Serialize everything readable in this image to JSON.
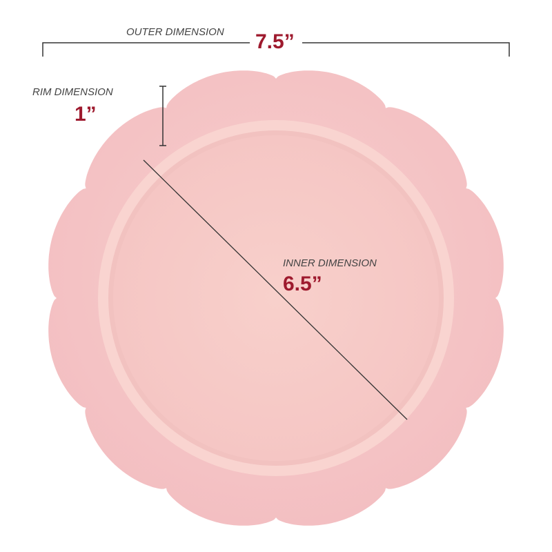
{
  "outer": {
    "label": "OUTER DIMENSION",
    "value": "7.5”"
  },
  "rim": {
    "label": "RIM DIMENSION",
    "value": "1”"
  },
  "inner": {
    "label": "INNER DIMENSION",
    "value": "6.5”"
  }
}
